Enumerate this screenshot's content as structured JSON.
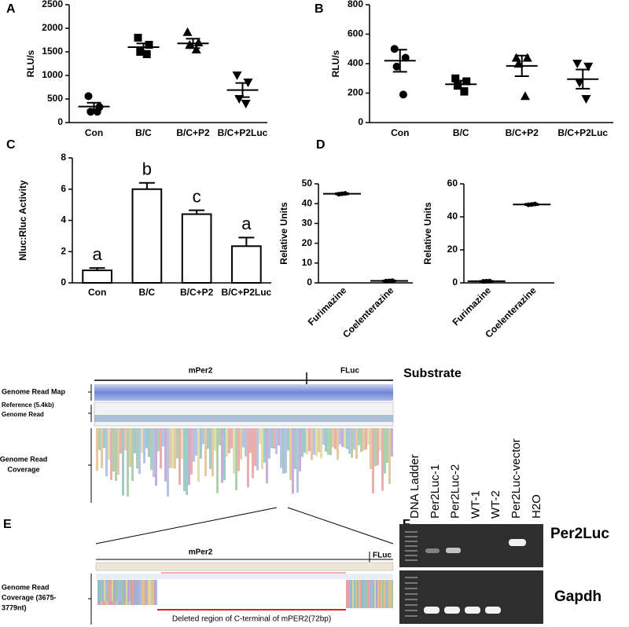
{
  "chart_data": [
    {
      "type": "dot",
      "panel": "A",
      "ylabel": "RLU/s",
      "categories": [
        "Con",
        "B/C",
        "B/C+P2",
        "B/C+P2Luc"
      ],
      "values": [
        [
          560,
          330,
          230,
          230
        ],
        [
          1800,
          1650,
          1500,
          1450
        ],
        [
          1920,
          1700,
          1650,
          1550
        ],
        [
          1000,
          850,
          500,
          400
        ]
      ],
      "means": [
        340,
        1600,
        1680,
        690
      ],
      "errors": [
        80,
        80,
        100,
        150
      ],
      "ylim": [
        0,
        2500
      ],
      "yticks": [
        0,
        500,
        1000,
        1500,
        2000,
        2500
      ],
      "color": "#000000"
    },
    {
      "type": "dot",
      "panel": "B",
      "ylabel": "RLU/s",
      "categories": [
        "Con",
        "B/C",
        "B/C+P2",
        "B/C+P2Luc"
      ],
      "values": [
        [
          500,
          440,
          380,
          190
        ],
        [
          300,
          280,
          250,
          210
        ],
        [
          440,
          440,
          400,
          180
        ],
        [
          400,
          380,
          270,
          160
        ]
      ],
      "means": [
        420,
        260,
        385,
        295
      ],
      "errors": [
        75,
        25,
        70,
        65
      ],
      "ylim": [
        0,
        800
      ],
      "yticks": [
        0,
        200,
        400,
        600,
        800
      ],
      "color": "#000000"
    },
    {
      "type": "bar",
      "panel": "C",
      "ylabel": "Nluc:Rluc Activity",
      "categories": [
        "Con",
        "B/C",
        "B/C+P2",
        "B/C+P2Luc"
      ],
      "values": [
        0.8,
        6.0,
        4.4,
        2.35
      ],
      "errors": [
        0.15,
        0.4,
        0.25,
        0.55
      ],
      "annotations": [
        "a",
        "b",
        "c",
        "a"
      ],
      "ylim": [
        0,
        8
      ],
      "yticks": [
        0,
        2,
        4,
        6,
        8
      ],
      "color": "#ffffff"
    },
    {
      "type": "dot",
      "panel": "D",
      "ylabel": "Relative Units",
      "xlabel": "Substrate",
      "categories": [
        "Furimazine",
        "Coelenterazine"
      ],
      "values": [
        [
          44.8,
          45,
          45.2
        ],
        [
          0.9,
          1,
          1.1
        ]
      ],
      "means": [
        45,
        1
      ],
      "errors": [
        0.3,
        0.2
      ],
      "ylim": [
        0,
        50
      ],
      "yticks": [
        0,
        10,
        20,
        30,
        40,
        50
      ],
      "color": "#000000"
    },
    {
      "type": "dot",
      "ylabel": "Relative Units",
      "categories": [
        "Furimazine",
        "Coelenterazine"
      ],
      "values": [
        [
          0.9,
          1,
          1.1
        ],
        [
          47.3,
          47.5,
          47.8
        ]
      ],
      "means": [
        1,
        47.5
      ],
      "errors": [
        0.2,
        0.4
      ],
      "ylim": [
        0,
        60
      ],
      "yticks": [
        0,
        20,
        40,
        60
      ],
      "color": "#000000"
    }
  ],
  "panel_E": {
    "label": "E",
    "top_regions": [
      "mPer2",
      "FLuc"
    ],
    "read_map_label": "Genome Read Map",
    "reference_label": "Reference (5.4kb)",
    "genome_read_label": "Genome Read",
    "coverage_label": [
      "Genome Read",
      "Coverage"
    ],
    "zoom_regions": [
      "mPer2",
      "FLuc"
    ],
    "zoom_coverage_label": [
      "Genome Read",
      "Coverage (3675-",
      "3779nt)"
    ],
    "deletion_label": "Deleted region of C-terminal of mPER2(72bp)"
  },
  "panel_F": {
    "label": "F",
    "lanes": [
      "DNA Ladder",
      "Per2Luc-1",
      "Per2Luc-2",
      "WT-1",
      "WT-2",
      "Per2Luc-vector",
      "H2O"
    ],
    "gels": [
      "Per2Luc",
      "Gapdh"
    ]
  }
}
